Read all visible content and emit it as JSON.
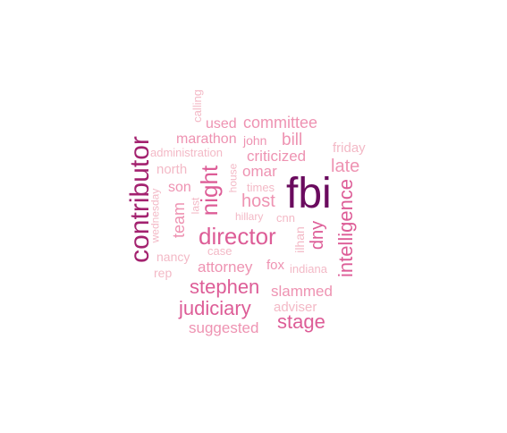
{
  "colors": {
    "dark": "#6a0b5e",
    "strong": "#a3226f",
    "medium": "#dd5d97",
    "light": "#ee93b2",
    "faint": "#f3b9c6"
  },
  "words": [
    {
      "text": "fbi",
      "color": "dark",
      "rotated": false
    },
    {
      "text": "contributor",
      "color": "strong",
      "rotated": true
    },
    {
      "text": "night",
      "color": "medium",
      "rotated": true
    },
    {
      "text": "director",
      "color": "medium",
      "rotated": false
    },
    {
      "text": "intelligence",
      "color": "medium",
      "rotated": true
    },
    {
      "text": "stephen",
      "color": "medium",
      "rotated": false
    },
    {
      "text": "judiciary",
      "color": "medium",
      "rotated": false
    },
    {
      "text": "stage",
      "color": "medium",
      "rotated": false
    },
    {
      "text": "dny",
      "color": "medium",
      "rotated": true
    },
    {
      "text": "team",
      "color": "light",
      "rotated": true
    },
    {
      "text": "host",
      "color": "light",
      "rotated": false
    },
    {
      "text": "late",
      "color": "light",
      "rotated": false
    },
    {
      "text": "attorney",
      "color": "light",
      "rotated": false
    },
    {
      "text": "slammed",
      "color": "light",
      "rotated": false
    },
    {
      "text": "committee",
      "color": "light",
      "rotated": false
    },
    {
      "text": "bill",
      "color": "light",
      "rotated": false
    },
    {
      "text": "omar",
      "color": "light",
      "rotated": false
    },
    {
      "text": "criticized",
      "color": "light",
      "rotated": false
    },
    {
      "text": "suggested",
      "color": "light",
      "rotated": false
    },
    {
      "text": "marathon",
      "color": "light",
      "rotated": false
    },
    {
      "text": "john",
      "color": "light",
      "rotated": false
    },
    {
      "text": "used",
      "color": "light",
      "rotated": false
    },
    {
      "text": "son",
      "color": "light",
      "rotated": false
    },
    {
      "text": "adviser",
      "color": "faint",
      "rotated": false
    },
    {
      "text": "fox",
      "color": "light",
      "rotated": false
    },
    {
      "text": "north",
      "color": "faint",
      "rotated": false
    },
    {
      "text": "friday",
      "color": "faint",
      "rotated": false
    },
    {
      "text": "ilhan",
      "color": "faint",
      "rotated": true
    },
    {
      "text": "cnn",
      "color": "faint",
      "rotated": false
    },
    {
      "text": "times",
      "color": "faint",
      "rotated": false
    },
    {
      "text": "rep",
      "color": "faint",
      "rotated": false
    },
    {
      "text": "nancy",
      "color": "faint",
      "rotated": false
    },
    {
      "text": "indiana",
      "color": "faint",
      "rotated": false
    },
    {
      "text": "calling",
      "color": "faint",
      "rotated": true
    },
    {
      "text": "administration",
      "color": "faint",
      "rotated": false
    },
    {
      "text": "house",
      "color": "faint",
      "rotated": true
    },
    {
      "text": "wednesday",
      "color": "faint",
      "rotated": true
    },
    {
      "text": "last",
      "color": "faint",
      "rotated": true
    },
    {
      "text": "hillary",
      "color": "faint",
      "rotated": false
    },
    {
      "text": "case",
      "color": "faint",
      "rotated": false
    }
  ]
}
